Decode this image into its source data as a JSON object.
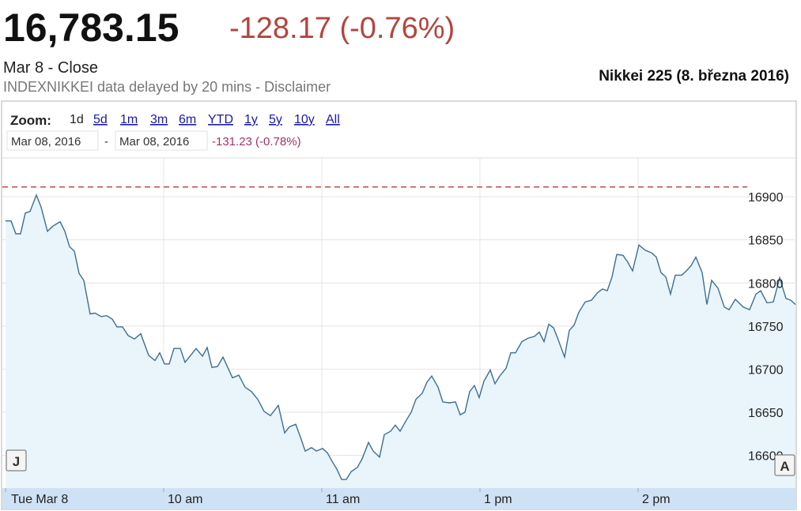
{
  "header": {
    "price": "16,783.15",
    "change": "-128.17 (-0.76%)",
    "close_label": "Mar 8 - Close",
    "source_note": "INDEXNIKKEI data delayed by 20 mins - Disclaimer",
    "chart_caption": "Nikkei 225 (8. března 2016)"
  },
  "zoom": {
    "label": "Zoom:",
    "options": [
      "1d",
      "5d",
      "1m",
      "3m",
      "6m",
      "YTD",
      "1y",
      "5y",
      "10y",
      "All"
    ]
  },
  "range": {
    "from": "Mar 08, 2016",
    "separator": "-",
    "to": "Mar 08, 2016",
    "change": "-131.23 (-0.78%)"
  },
  "chart_data": {
    "type": "area",
    "x": [
      0,
      2.1,
      3.9,
      5.7,
      7.5,
      9.3,
      11.7,
      13.5,
      15.9,
      18,
      20.7,
      22.5,
      24.3,
      26.1,
      27.9,
      29.7,
      32.1,
      33.9,
      36.3,
      38.4,
      40.5,
      42.3,
      44.4,
      46.5,
      48.9,
      51.3,
      54.3,
      56.7,
      58.5,
      60.3,
      62.1,
      63.9,
      66.3,
      68.1,
      70.5,
      72.3,
      74.7,
      76.5,
      78.3,
      80.4,
      82.5,
      84.3,
      86.1,
      88.5,
      90.9,
      93.3,
      95.7,
      98.1,
      100.5,
      103.5,
      105.9,
      107.7,
      110.1,
      111.9,
      113.7,
      116.1,
      117.9,
      120.3,
      122.1,
      123.9,
      125.7,
      127.5,
      129.3,
      131.1,
      133.5,
      135.3,
      137.7,
      139.5,
      141.9,
      143.7,
      146.1,
      147.9,
      149.7,
      152.1,
      153.9,
      155.7,
      158.1,
      159.9,
      161.7,
      164.1,
      165.9,
      168.3,
      170.7,
      172.5,
      174.3,
      176.1,
      177.9,
      179.7,
      181.5,
      183.9,
      185.7,
      187.5,
      189.9,
      191.7,
      193.5,
      195.9,
      198.3,
      200.7,
      202.5,
      204.3,
      206.1,
      207.9,
      209.7,
      212.1,
      213.9,
      215.7,
      217.5,
      219.9,
      222.3,
      224.7,
      226.5,
      228.3,
      230.1,
      231.9,
      234.3,
      236.1,
      237.9,
      240.3,
      242.7,
      245.1,
      246.9,
      248.7,
      250.5,
      252.3,
      254.1,
      256.5,
      258.3,
      260.1,
      261.9,
      264.3,
      266.1,
      267.9,
      270.3,
      272.7,
      274.5,
      276.9,
      279.9,
      282.3,
      284.7,
      286.5,
      288.9,
      291.3,
      293.7,
      296.1,
      297.9,
      299.7
    ],
    "series": [
      {
        "color": "#3d6f93",
        "fill": "#e9f4fb",
        "values": [
          16872,
          16872,
          16857,
          16857,
          16881,
          16883,
          16902,
          16888,
          16860,
          16866,
          16871,
          16860,
          16842,
          16837,
          16811,
          16803,
          16764,
          16765,
          16761,
          16762,
          16758,
          16749,
          16749,
          16739,
          16735,
          16741,
          16716,
          16710,
          16719,
          16706,
          16706,
          16724,
          16724,
          16708,
          16717,
          16724,
          16715,
          16725,
          16702,
          16703,
          16714,
          16702,
          16690,
          16693,
          16679,
          16674,
          16665,
          16651,
          16646,
          16658,
          16626,
          16633,
          16636,
          16621,
          16605,
          16609,
          16605,
          16608,
          16603,
          16593,
          16584,
          16572,
          16572,
          16581,
          16586,
          16596,
          16615,
          16605,
          16598,
          16624,
          16628,
          16635,
          16628,
          16641,
          16650,
          16665,
          16672,
          16685,
          16692,
          16679,
          16662,
          16661,
          16662,
          16647,
          16650,
          16674,
          16681,
          16667,
          16686,
          16699,
          16683,
          16692,
          16701,
          16719,
          16719,
          16732,
          16736,
          16738,
          16743,
          16732,
          16752,
          16748,
          16734,
          16714,
          16745,
          16751,
          16766,
          16778,
          16780,
          16789,
          16793,
          16791,
          16807,
          16833,
          16832,
          16824,
          16814,
          16844,
          16838,
          16835,
          16830,
          16812,
          16807,
          16787,
          16809,
          16809,
          16814,
          16820,
          16830,
          16812,
          16775,
          16803,
          16794,
          16772,
          16769,
          16781,
          16772,
          16769,
          16787,
          16791,
          16777,
          16778,
          16806,
          16782,
          16780,
          16775
        ]
      }
    ],
    "previous_close": 16911.32,
    "reference_color": "#b02a2a",
    "xlim": [
      0,
      300
    ],
    "xticks": [
      {
        "value": 0,
        "label": "Tue Mar 8"
      },
      {
        "value": 60,
        "label": "10 am"
      },
      {
        "value": 120,
        "label": "11 am"
      },
      {
        "value": 180,
        "label": "1 pm"
      },
      {
        "value": 240,
        "label": "2 pm"
      }
    ],
    "ylim": [
      16562,
      16945
    ],
    "yticks": [
      16600,
      16650,
      16700,
      16750,
      16800,
      16850,
      16900
    ],
    "grid": true,
    "annotations": [
      "J",
      "A"
    ]
  }
}
